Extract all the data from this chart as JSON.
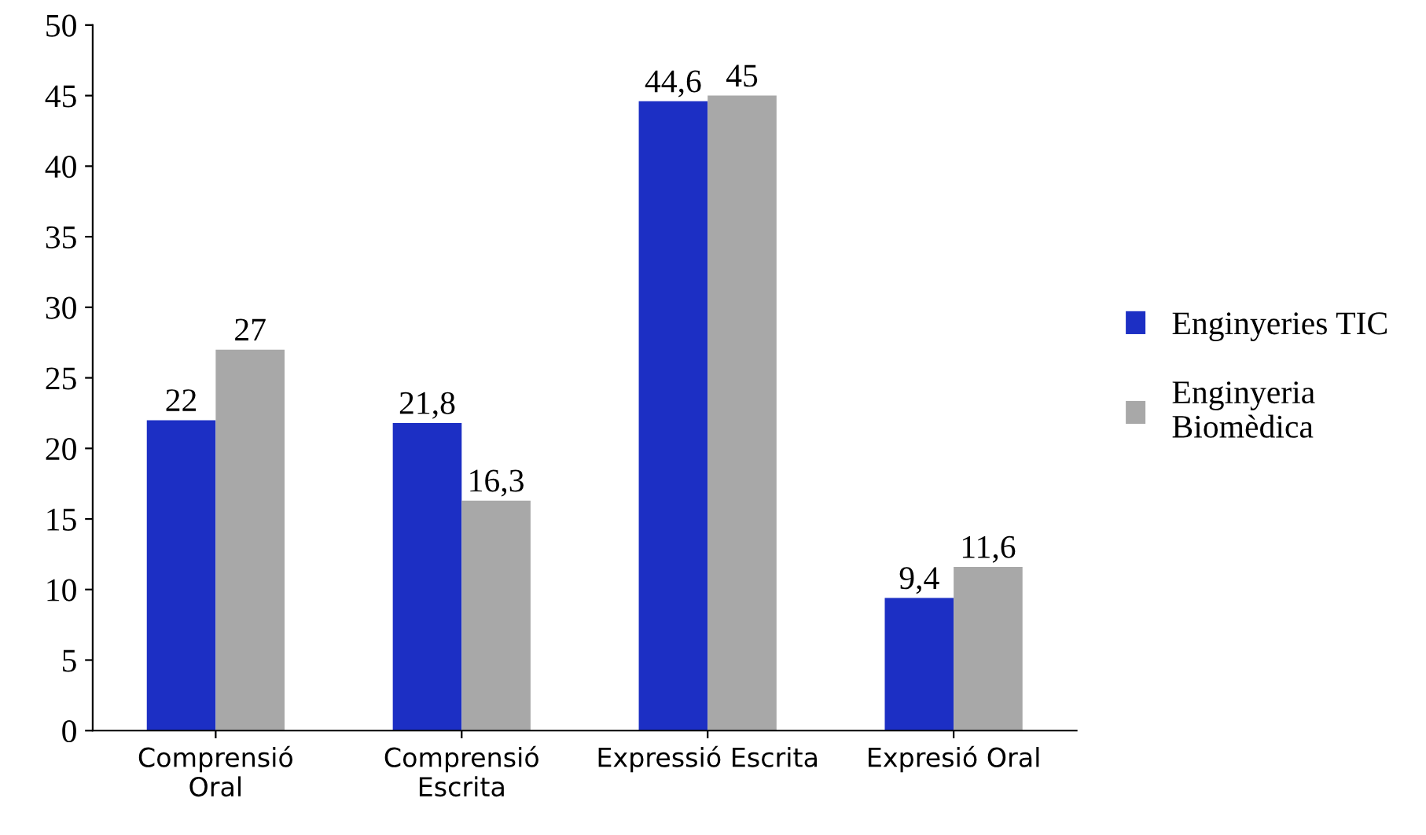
{
  "chart_data": {
    "type": "bar",
    "categories": [
      "Comprensió\nOral",
      "Comprensió\nEscrita",
      "Expressió Escrita",
      "Expresió Oral"
    ],
    "series": [
      {
        "name": "Enginyeries TIC",
        "color": "#1c2fc4",
        "values": [
          22,
          21.8,
          44.6,
          9.4
        ],
        "value_labels": [
          "22",
          "21,8",
          "44,6",
          "9,4"
        ]
      },
      {
        "name": "Enginyeria\nBiomèdica",
        "color": "#a8a8a8",
        "values": [
          27,
          16.3,
          45,
          11.6
        ],
        "value_labels": [
          "27",
          "16,3",
          "45",
          "11,6"
        ]
      }
    ],
    "ylim": [
      0,
      50
    ],
    "yticks": [
      0,
      5,
      10,
      15,
      20,
      25,
      30,
      35,
      40,
      45,
      50
    ],
    "grid": false,
    "legend": "right"
  }
}
